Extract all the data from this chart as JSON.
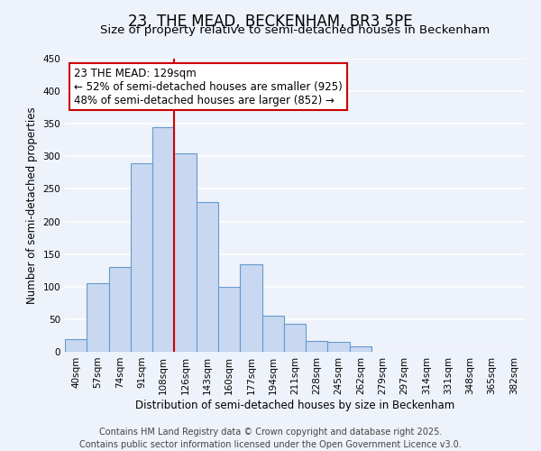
{
  "title": "23, THE MEAD, BECKENHAM, BR3 5PE",
  "subtitle": "Size of property relative to semi-detached houses in Beckenham",
  "xlabel": "Distribution of semi-detached houses by size in Beckenham",
  "ylabel": "Number of semi-detached properties",
  "bin_labels": [
    "40sqm",
    "57sqm",
    "74sqm",
    "91sqm",
    "108sqm",
    "126sqm",
    "143sqm",
    "160sqm",
    "177sqm",
    "194sqm",
    "211sqm",
    "228sqm",
    "245sqm",
    "262sqm",
    "279sqm",
    "297sqm",
    "314sqm",
    "331sqm",
    "348sqm",
    "365sqm",
    "382sqm"
  ],
  "bar_heights": [
    20,
    105,
    130,
    290,
    345,
    305,
    230,
    100,
    135,
    55,
    43,
    17,
    15,
    8,
    0,
    0,
    0,
    0,
    0,
    0,
    0
  ],
  "bar_color": "#c8d8f0",
  "bar_edge_color": "#6699cc",
  "background_color": "#eef2fa",
  "grid_color": "#ffffff",
  "ylim": [
    0,
    450
  ],
  "yticks": [
    0,
    50,
    100,
    150,
    200,
    250,
    300,
    350,
    400,
    450
  ],
  "annotation_title": "23 THE MEAD: 129sqm",
  "annotation_line1": "← 52% of semi-detached houses are smaller (925)",
  "annotation_line2": "48% of semi-detached houses are larger (852) →",
  "vline_color": "#cc0000",
  "footer_line1": "Contains HM Land Registry data © Crown copyright and database right 2025.",
  "footer_line2": "Contains public sector information licensed under the Open Government Licence v3.0.",
  "title_fontsize": 12,
  "subtitle_fontsize": 9.5,
  "annotation_fontsize": 8.5,
  "footer_fontsize": 7,
  "ylabel_fontsize": 8.5,
  "xlabel_fontsize": 8.5,
  "tick_fontsize": 7.5
}
